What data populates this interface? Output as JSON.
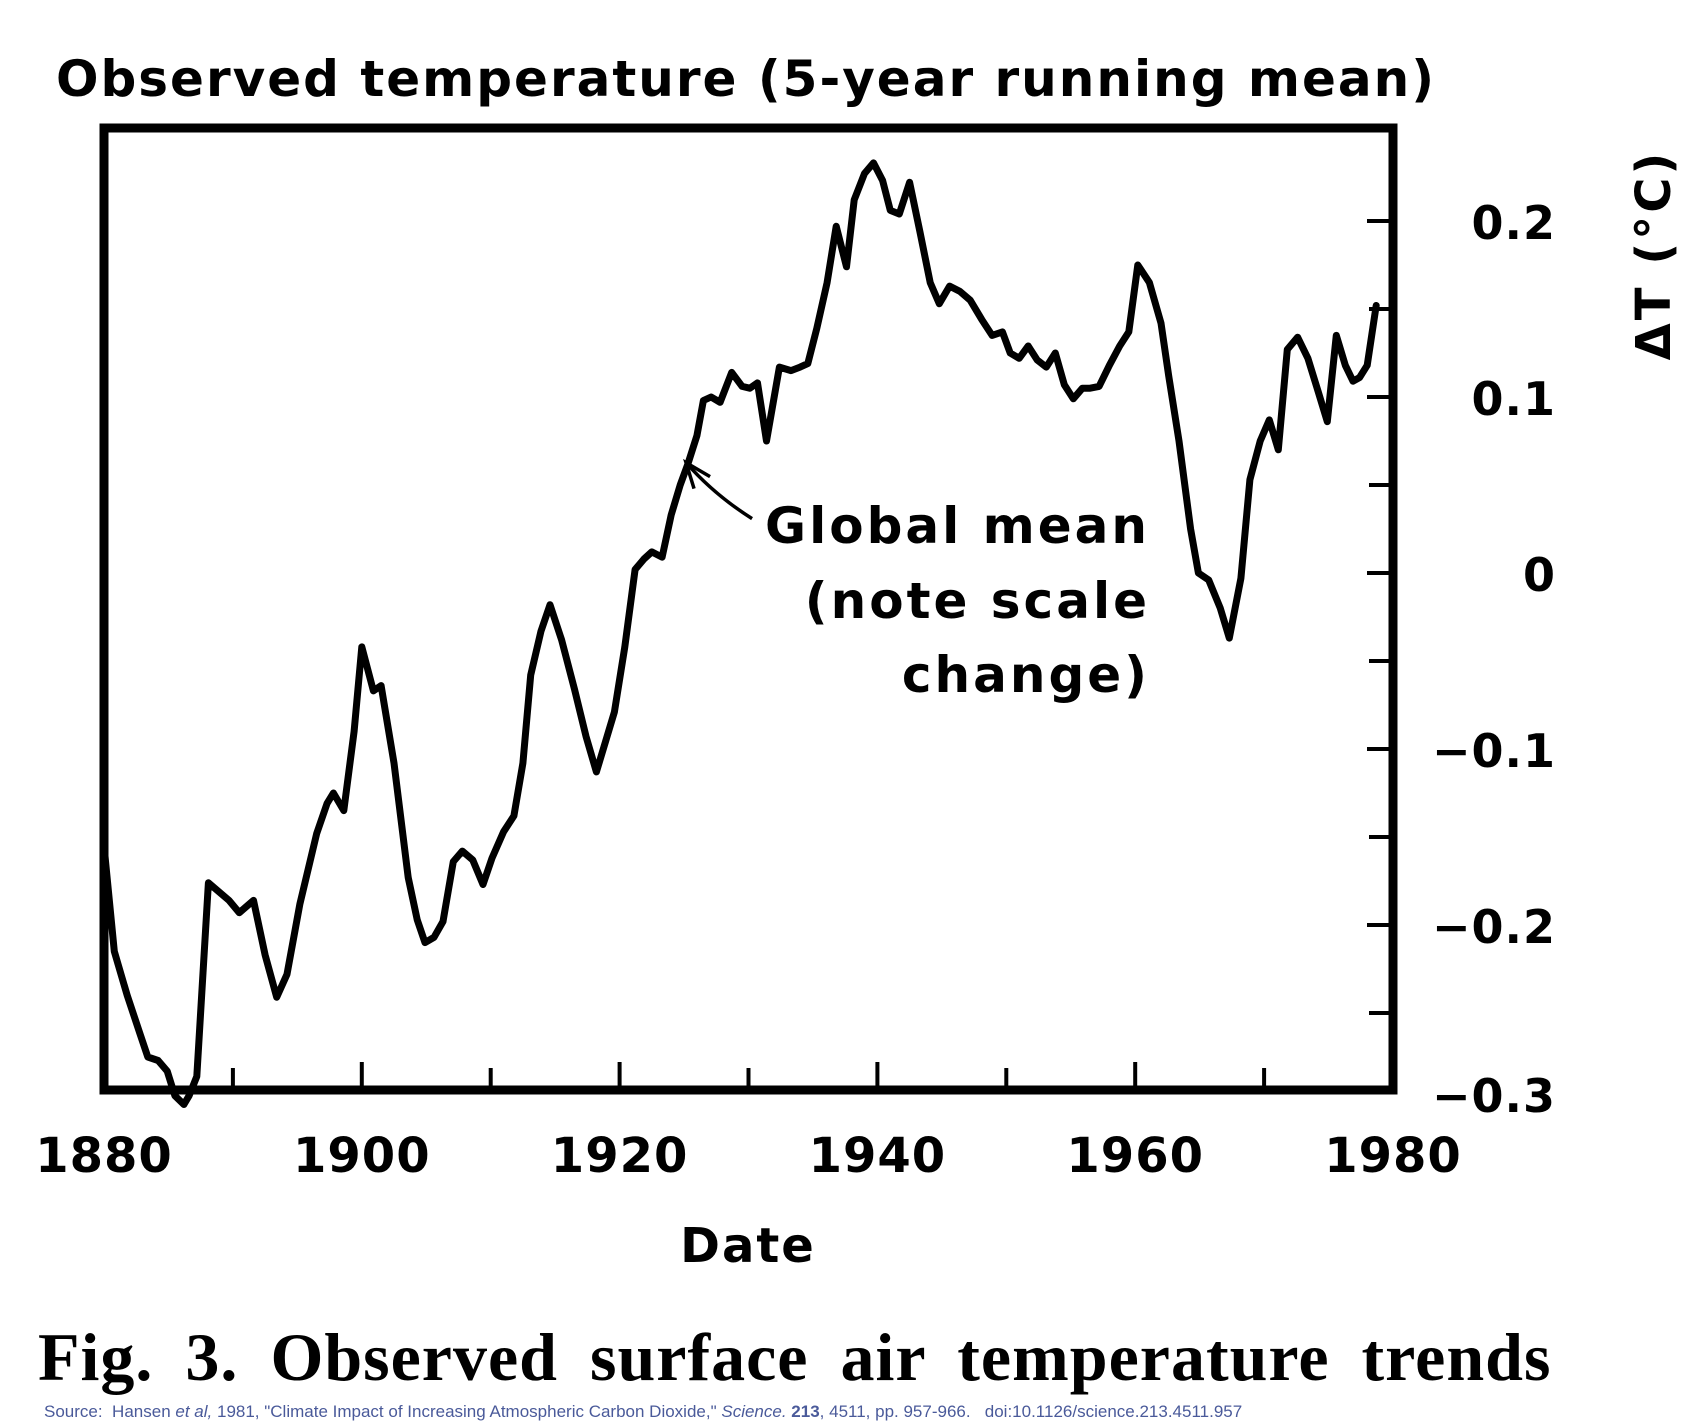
{
  "chart_data": {
    "type": "line",
    "title": "Observed temperature (5-year running mean)",
    "xlabel": "Date",
    "ylabel": "ΔT (°C)",
    "xlim": [
      1880,
      1980
    ],
    "ylim": [
      -0.3,
      0.25
    ],
    "x_ticks": [
      1880,
      1900,
      1920,
      1940,
      1960,
      1980
    ],
    "x_tick_labels": [
      "1880",
      "1900",
      "1920",
      "1940",
      "1960",
      "1980"
    ],
    "x_minor_ticks": [
      1890,
      1910,
      1930,
      1950,
      1970
    ],
    "y_ticks": [
      -0.3,
      -0.2,
      -0.1,
      0,
      0.1,
      0.2
    ],
    "y_tick_labels": [
      "−0.3",
      "−0.2",
      "−0.1",
      "0",
      "0.1",
      "0.2"
    ],
    "y_minor_ticks": [
      -0.25,
      -0.15,
      -0.05,
      0.05,
      0.15
    ],
    "y_axis_side": "right",
    "grid": false,
    "legend": "none",
    "annotation": {
      "lines": [
        "Global mean",
        "(note scale",
        "change)"
      ],
      "arrow_to_year": 1925.0,
      "arrow_to_value": 0.065
    },
    "series": [
      {
        "name": "Global mean",
        "x": [
          1880.0,
          1880.8,
          1881.8,
          1882.8,
          1883.4,
          1884.2,
          1884.9,
          1885.5,
          1886.2,
          1886.6,
          1887.2,
          1888.1,
          1889.7,
          1890.5,
          1891.6,
          1892.5,
          1893.4,
          1894.2,
          1895.2,
          1896.5,
          1897.3,
          1897.8,
          1898.6,
          1899.4,
          1900.0,
          1900.9,
          1901.5,
          1902.5,
          1903.6,
          1904.3,
          1904.9,
          1905.6,
          1906.3,
          1907.1,
          1907.8,
          1908.6,
          1909.4,
          1910.1,
          1911.0,
          1911.8,
          1912.5,
          1913.1,
          1913.9,
          1914.6,
          1915.5,
          1916.5,
          1917.4,
          1918.2,
          1918.9,
          1919.6,
          1920.4,
          1921.2,
          1921.9,
          1922.5,
          1923.3,
          1924.0,
          1924.7,
          1925.3,
          1926.0,
          1926.5,
          1927.1,
          1927.8,
          1928.7,
          1929.5,
          1930.1,
          1930.7,
          1931.4,
          1932.4,
          1933.3,
          1934.0,
          1934.6,
          1935.3,
          1936.1,
          1936.8,
          1937.6,
          1938.2,
          1939.0,
          1939.7,
          1940.4,
          1941.0,
          1941.7,
          1942.5,
          1943.3,
          1944.1,
          1944.8,
          1945.6,
          1946.4,
          1947.2,
          1948.1,
          1948.9,
          1949.7,
          1950.3,
          1951.0,
          1951.7,
          1952.4,
          1953.1,
          1953.8,
          1954.5,
          1955.2,
          1955.9,
          1956.5,
          1957.2,
          1958.0,
          1958.8,
          1959.5,
          1960.2,
          1961.1,
          1962.0,
          1962.6,
          1963.4,
          1964.3,
          1964.9,
          1965.7,
          1966.6,
          1967.3,
          1968.2,
          1968.9,
          1969.7,
          1970.4,
          1971.1,
          1971.8,
          1972.6,
          1973.4,
          1974.2,
          1974.9,
          1975.6,
          1976.3,
          1976.9,
          1977.4,
          1978.0,
          1978.7
        ],
        "y": [
          -0.155,
          -0.215,
          -0.24,
          -0.262,
          -0.275,
          -0.277,
          -0.283,
          -0.297,
          -0.302,
          -0.297,
          -0.286,
          -0.176,
          -0.186,
          -0.193,
          -0.186,
          -0.217,
          -0.241,
          -0.228,
          -0.188,
          -0.148,
          -0.131,
          -0.125,
          -0.135,
          -0.09,
          -0.042,
          -0.067,
          -0.064,
          -0.108,
          -0.173,
          -0.197,
          -0.21,
          -0.207,
          -0.198,
          -0.164,
          -0.158,
          -0.163,
          -0.177,
          -0.162,
          -0.147,
          -0.138,
          -0.108,
          -0.058,
          -0.033,
          -0.018,
          -0.038,
          -0.066,
          -0.093,
          -0.113,
          -0.096,
          -0.079,
          -0.042,
          0.002,
          0.008,
          0.012,
          0.009,
          0.033,
          0.05,
          0.062,
          0.078,
          0.098,
          0.1,
          0.097,
          0.114,
          0.106,
          0.105,
          0.108,
          0.075,
          0.117,
          0.115,
          0.117,
          0.119,
          0.139,
          0.165,
          0.197,
          0.174,
          0.212,
          0.227,
          0.233,
          0.223,
          0.206,
          0.204,
          0.222,
          0.194,
          0.165,
          0.153,
          0.163,
          0.16,
          0.155,
          0.144,
          0.135,
          0.137,
          0.125,
          0.122,
          0.129,
          0.121,
          0.117,
          0.125,
          0.107,
          0.099,
          0.105,
          0.105,
          0.106,
          0.118,
          0.129,
          0.137,
          0.175,
          0.165,
          0.142,
          0.112,
          0.075,
          0.025,
          0.0,
          -0.004,
          -0.02,
          -0.037,
          -0.003,
          0.053,
          0.075,
          0.087,
          0.07,
          0.127,
          0.134,
          0.122,
          0.103,
          0.086,
          0.135,
          0.118,
          0.109,
          0.111,
          0.118,
          0.152
        ]
      }
    ]
  },
  "caption": {
    "prefix": "Fig. 3.",
    "text": "Observed surface air temperature trends"
  },
  "source": {
    "label": "Source:",
    "authors": "Hansen",
    "etal": "et al,",
    "year_title": "1981, \"Climate Impact of Increasing Atmospheric Carbon Dioxide,\"",
    "journal": "Science.",
    "volume": "213",
    "issue_pages": ", 4511, pp. 957-966.",
    "doi": "doi:10.1126/science.213.4511.957"
  }
}
